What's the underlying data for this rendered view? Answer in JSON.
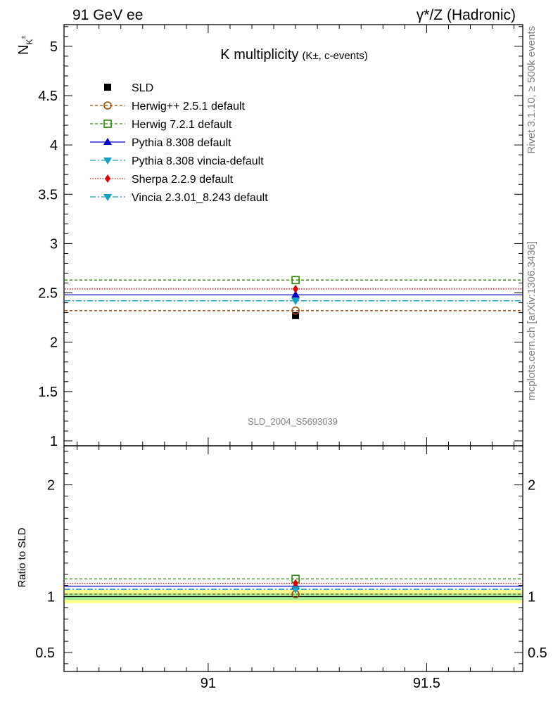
{
  "header": {
    "left": "91 GeV ee",
    "right": "γ*/Z (Hadronic)"
  },
  "side_labels": {
    "rivet": "Rivet 3.1.10, ≥ 500k events",
    "mcplots": "mcplots.cern.ch [arXiv:1306.3436]"
  },
  "chart_data": {
    "type": "scatter",
    "title": "K multiplicity",
    "title_sub": "(K±, c-events)",
    "ylabel": "N_{K^{±}}",
    "ratio_ylabel": "Ratio to SLD",
    "analysis_tag": "SLD_2004_S5693039",
    "xlim": [
      90.67,
      91.72
    ],
    "ylim": [
      0.95,
      5.22
    ],
    "ratio_ylim": [
      0.33,
      2.35
    ],
    "x_ticks": [
      {
        "value": 91,
        "label": "91"
      },
      {
        "value": 91.5,
        "label": "91.5"
      }
    ],
    "y_ticks": [
      {
        "value": 1,
        "label": "1"
      },
      {
        "value": 1.5,
        "label": "1.5"
      },
      {
        "value": 2,
        "label": "2"
      },
      {
        "value": 2.5,
        "label": "2.5"
      },
      {
        "value": 3,
        "label": "3"
      },
      {
        "value": 3.5,
        "label": "3.5"
      },
      {
        "value": 4,
        "label": "4"
      },
      {
        "value": 4.5,
        "label": "4.5"
      },
      {
        "value": 5,
        "label": "5"
      }
    ],
    "ratio_y_ticks": [
      {
        "value": 0.5,
        "label": "0.5"
      },
      {
        "value": 1,
        "label": "1"
      },
      {
        "value": 2,
        "label": "2"
      }
    ],
    "x": 91.2,
    "series": [
      {
        "name": "SLD",
        "value": 2.27,
        "ratio": 1.0,
        "color": "#000000",
        "marker": "square-filled",
        "dash": "solid",
        "is_data": true
      },
      {
        "name": "Herwig++ 2.5.1 default",
        "value": 2.32,
        "ratio": 1.022,
        "color": "#a04a00",
        "marker": "circle-open",
        "dash": "4,3"
      },
      {
        "name": "Herwig 7.2.1 default",
        "value": 2.63,
        "ratio": 1.159,
        "color": "#2a8a00",
        "marker": "square-open",
        "dash": "4,3"
      },
      {
        "name": "Pythia 8.308 default",
        "value": 2.48,
        "ratio": 1.093,
        "color": "#0000c0",
        "marker": "triangle-up",
        "dash": "solid"
      },
      {
        "name": "Pythia 8.308 vincia-default",
        "value": 2.42,
        "ratio": 1.066,
        "color": "#1aa0c0",
        "marker": "triangle-down",
        "dash": "8,3,2,3"
      },
      {
        "name": "Sherpa 2.2.9 default",
        "value": 2.54,
        "ratio": 1.119,
        "color": "#e00000",
        "marker": "diamond",
        "dash": "1.5,2"
      },
      {
        "name": "Vincia 2.3.01_8.243 default",
        "value": 2.42,
        "ratio": 1.066,
        "color": "#1aa0c0",
        "marker": "triangle-down",
        "dash": "8,3,2,3"
      }
    ],
    "data_band": {
      "inner": [
        0.97,
        1.03
      ],
      "outer": [
        0.94,
        1.06
      ],
      "inner_color": "#a0f0a0",
      "outer_color": "#ffff90"
    }
  }
}
